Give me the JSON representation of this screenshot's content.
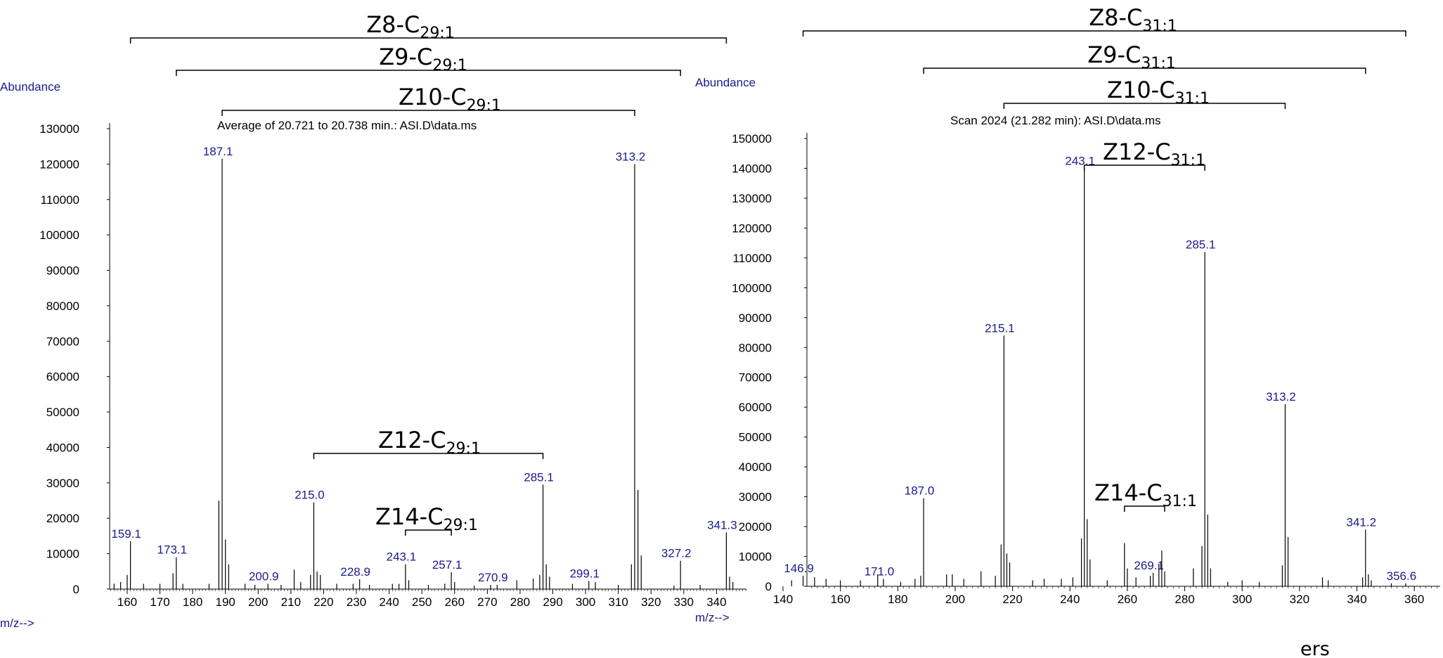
{
  "footer_text": "ers",
  "colors": {
    "label": "#1a1a8c",
    "axis": "#000000",
    "peak": "#000000"
  },
  "chart_data": [
    {
      "type": "bar",
      "title": "Average of 20.721 to 20.738 min.: ASI.D\\data.ms",
      "ylabel": "Abundance",
      "xlabel": "m/z-->",
      "xlim": [
        154,
        350
      ],
      "ylim": [
        0,
        130000
      ],
      "yticks": [
        0,
        10000,
        20000,
        30000,
        40000,
        50000,
        60000,
        70000,
        80000,
        90000,
        100000,
        110000,
        120000,
        130000
      ],
      "xticks": [
        160,
        170,
        180,
        190,
        200,
        210,
        220,
        230,
        240,
        250,
        260,
        270,
        280,
        290,
        300,
        310,
        320,
        330,
        340
      ],
      "peaks": [
        {
          "mz": 161,
          "value": 13500,
          "label": "159.1"
        },
        {
          "mz": 175,
          "value": 9000,
          "label": "173.1"
        },
        {
          "mz": 189,
          "value": 121500,
          "label": "187.1"
        },
        {
          "mz": 203,
          "value": 1500,
          "label": "200.9"
        },
        {
          "mz": 217,
          "value": 24500,
          "label": "215.0"
        },
        {
          "mz": 231,
          "value": 2800,
          "label": "228.9"
        },
        {
          "mz": 245,
          "value": 7000,
          "label": "243.1"
        },
        {
          "mz": 259,
          "value": 4800,
          "label": "257.1"
        },
        {
          "mz": 273,
          "value": 1200,
          "label": "270.9"
        },
        {
          "mz": 287,
          "value": 29500,
          "label": "285.1"
        },
        {
          "mz": 301,
          "value": 2300,
          "label": "299.1"
        },
        {
          "mz": 315,
          "value": 120000,
          "label": "313.2"
        },
        {
          "mz": 329,
          "value": 8000,
          "label": "327.2"
        },
        {
          "mz": 343,
          "value": 16000,
          "label": "341.3"
        },
        {
          "mz": 188,
          "value": 25000,
          "label": ""
        },
        {
          "mz": 190,
          "value": 14000,
          "label": ""
        },
        {
          "mz": 191,
          "value": 7000,
          "label": ""
        },
        {
          "mz": 316,
          "value": 28000,
          "label": ""
        },
        {
          "mz": 317,
          "value": 9500,
          "label": ""
        },
        {
          "mz": 314,
          "value": 7000,
          "label": ""
        },
        {
          "mz": 288,
          "value": 7000,
          "label": ""
        },
        {
          "mz": 289,
          "value": 3500,
          "label": ""
        },
        {
          "mz": 286,
          "value": 4000,
          "label": ""
        },
        {
          "mz": 218,
          "value": 5000,
          "label": ""
        },
        {
          "mz": 216,
          "value": 4000,
          "label": ""
        },
        {
          "mz": 219,
          "value": 4000,
          "label": ""
        },
        {
          "mz": 211,
          "value": 5500,
          "label": ""
        },
        {
          "mz": 174,
          "value": 4500,
          "label": ""
        },
        {
          "mz": 160,
          "value": 4000,
          "label": ""
        },
        {
          "mz": 246,
          "value": 2500,
          "label": ""
        },
        {
          "mz": 260,
          "value": 2000,
          "label": ""
        },
        {
          "mz": 344,
          "value": 3500,
          "label": ""
        },
        {
          "mz": 345,
          "value": 2000,
          "label": ""
        },
        {
          "mz": 156,
          "value": 1500,
          "label": ""
        },
        {
          "mz": 158,
          "value": 2000,
          "label": ""
        },
        {
          "mz": 165,
          "value": 1500,
          "label": ""
        },
        {
          "mz": 170,
          "value": 1500,
          "label": ""
        },
        {
          "mz": 177,
          "value": 1500,
          "label": ""
        },
        {
          "mz": 185,
          "value": 1500,
          "label": ""
        },
        {
          "mz": 196,
          "value": 1500,
          "label": ""
        },
        {
          "mz": 199,
          "value": 1200,
          "label": ""
        },
        {
          "mz": 207,
          "value": 1200,
          "label": ""
        },
        {
          "mz": 213,
          "value": 2000,
          "label": ""
        },
        {
          "mz": 224,
          "value": 1500,
          "label": ""
        },
        {
          "mz": 229,
          "value": 1500,
          "label": ""
        },
        {
          "mz": 234,
          "value": 1200,
          "label": ""
        },
        {
          "mz": 241,
          "value": 1500,
          "label": ""
        },
        {
          "mz": 243,
          "value": 1500,
          "label": ""
        },
        {
          "mz": 252,
          "value": 1200,
          "label": ""
        },
        {
          "mz": 257,
          "value": 1500,
          "label": ""
        },
        {
          "mz": 266,
          "value": 1000,
          "label": ""
        },
        {
          "mz": 271,
          "value": 1200,
          "label": ""
        },
        {
          "mz": 279,
          "value": 2500,
          "label": ""
        },
        {
          "mz": 284,
          "value": 3000,
          "label": ""
        },
        {
          "mz": 296,
          "value": 1500,
          "label": ""
        },
        {
          "mz": 303,
          "value": 2000,
          "label": ""
        },
        {
          "mz": 310,
          "value": 1200,
          "label": ""
        },
        {
          "mz": 327,
          "value": 1000,
          "label": ""
        },
        {
          "mz": 335,
          "value": 1200,
          "label": ""
        }
      ],
      "annotations": [
        {
          "name": "Z8",
          "label": "Z8-C",
          "sub": "29:1",
          "from": 161,
          "to": 343
        },
        {
          "name": "Z9",
          "label": "Z9-C",
          "sub": "29:1",
          "from": 175,
          "to": 329
        },
        {
          "name": "Z10",
          "label": "Z10-C",
          "sub": "29:1",
          "from": 189,
          "to": 315
        },
        {
          "name": "Z12",
          "label": "Z12-C",
          "sub": "29:1",
          "from": 217,
          "to": 287
        },
        {
          "name": "Z14",
          "label": "Z14-C",
          "sub": "29:1",
          "from": 245,
          "to": 259
        }
      ]
    },
    {
      "type": "bar",
      "title": "Scan 2024 (21.282 min): ASI.D\\data.ms",
      "ylabel": "Abundance",
      "xlabel": "m/z-->",
      "xlim": [
        140,
        370
      ],
      "ylim": [
        0,
        150000
      ],
      "yticks": [
        0,
        10000,
        20000,
        30000,
        40000,
        50000,
        60000,
        70000,
        80000,
        90000,
        100000,
        110000,
        120000,
        130000,
        140000,
        150000
      ],
      "xticks": [
        140,
        160,
        180,
        200,
        220,
        240,
        260,
        280,
        300,
        320,
        340,
        360
      ],
      "peaks": [
        {
          "mz": 147,
          "value": 3500,
          "label": "146.9"
        },
        {
          "mz": 175,
          "value": 2500,
          "label": "171.0"
        },
        {
          "mz": 189,
          "value": 29500,
          "label": "187.0"
        },
        {
          "mz": 217,
          "value": 84000,
          "label": "215.1"
        },
        {
          "mz": 245,
          "value": 140000,
          "label": "243.1"
        },
        {
          "mz": 269,
          "value": 4500,
          "label": "269.1"
        },
        {
          "mz": 287,
          "value": 112000,
          "label": "285.1"
        },
        {
          "mz": 315,
          "value": 61000,
          "label": "313.2"
        },
        {
          "mz": 343,
          "value": 19000,
          "label": "341.2"
        },
        {
          "mz": 357,
          "value": 1000,
          "label": "356.6"
        },
        {
          "mz": 216,
          "value": 14000,
          "label": ""
        },
        {
          "mz": 218,
          "value": 11000,
          "label": ""
        },
        {
          "mz": 219,
          "value": 8000,
          "label": ""
        },
        {
          "mz": 244,
          "value": 16000,
          "label": ""
        },
        {
          "mz": 246,
          "value": 22500,
          "label": ""
        },
        {
          "mz": 247,
          "value": 9000,
          "label": ""
        },
        {
          "mz": 259,
          "value": 14500,
          "label": ""
        },
        {
          "mz": 260,
          "value": 6000,
          "label": ""
        },
        {
          "mz": 271,
          "value": 7500,
          "label": ""
        },
        {
          "mz": 272,
          "value": 12000,
          "label": ""
        },
        {
          "mz": 273,
          "value": 5000,
          "label": ""
        },
        {
          "mz": 286,
          "value": 13500,
          "label": ""
        },
        {
          "mz": 288,
          "value": 24000,
          "label": ""
        },
        {
          "mz": 289,
          "value": 6000,
          "label": ""
        },
        {
          "mz": 314,
          "value": 7000,
          "label": ""
        },
        {
          "mz": 316,
          "value": 16500,
          "label": ""
        },
        {
          "mz": 342,
          "value": 3000,
          "label": ""
        },
        {
          "mz": 344,
          "value": 4000,
          "label": ""
        },
        {
          "mz": 345,
          "value": 2000,
          "label": ""
        },
        {
          "mz": 188,
          "value": 3500,
          "label": ""
        },
        {
          "mz": 186,
          "value": 2500,
          "label": ""
        },
        {
          "mz": 143,
          "value": 2000,
          "label": ""
        },
        {
          "mz": 151,
          "value": 3000,
          "label": ""
        },
        {
          "mz": 155,
          "value": 2500,
          "label": ""
        },
        {
          "mz": 160,
          "value": 2000,
          "label": ""
        },
        {
          "mz": 167,
          "value": 2000,
          "label": ""
        },
        {
          "mz": 173,
          "value": 4000,
          "label": ""
        },
        {
          "mz": 181,
          "value": 1500,
          "label": ""
        },
        {
          "mz": 197,
          "value": 4000,
          "label": ""
        },
        {
          "mz": 199,
          "value": 4000,
          "label": ""
        },
        {
          "mz": 203,
          "value": 2500,
          "label": ""
        },
        {
          "mz": 209,
          "value": 5000,
          "label": ""
        },
        {
          "mz": 214,
          "value": 3500,
          "label": ""
        },
        {
          "mz": 227,
          "value": 2000,
          "label": ""
        },
        {
          "mz": 231,
          "value": 2500,
          "label": ""
        },
        {
          "mz": 237,
          "value": 2500,
          "label": ""
        },
        {
          "mz": 241,
          "value": 3000,
          "label": ""
        },
        {
          "mz": 253,
          "value": 2000,
          "label": ""
        },
        {
          "mz": 263,
          "value": 3000,
          "label": ""
        },
        {
          "mz": 268,
          "value": 3500,
          "label": ""
        },
        {
          "mz": 283,
          "value": 6000,
          "label": ""
        },
        {
          "mz": 295,
          "value": 1500,
          "label": ""
        },
        {
          "mz": 300,
          "value": 2000,
          "label": ""
        },
        {
          "mz": 306,
          "value": 1500,
          "label": ""
        },
        {
          "mz": 328,
          "value": 3000,
          "label": ""
        },
        {
          "mz": 330,
          "value": 2000,
          "label": ""
        },
        {
          "mz": 352,
          "value": 1000,
          "label": ""
        }
      ],
      "annotations": [
        {
          "name": "Z8",
          "label": "Z8-C",
          "sub": "31:1",
          "from": 147,
          "to": 357
        },
        {
          "name": "Z9",
          "label": "Z9-C",
          "sub": "31:1",
          "from": 189,
          "to": 343
        },
        {
          "name": "Z10",
          "label": "Z10-C",
          "sub": "31:1",
          "from": 217,
          "to": 315
        },
        {
          "name": "Z12",
          "label": "Z12-C",
          "sub": "31:1",
          "from": 245,
          "to": 287
        },
        {
          "name": "Z14",
          "label": "Z14-C",
          "sub": "31:1",
          "from": 259,
          "to": 273
        }
      ]
    }
  ]
}
